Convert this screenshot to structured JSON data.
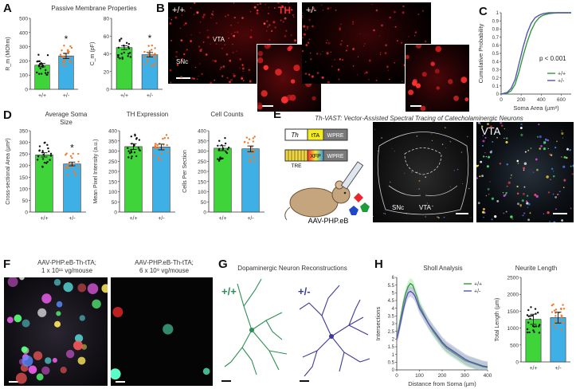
{
  "panels": {
    "A": {
      "label": "A",
      "title": "Passive Membrane Properties",
      "rm_ylabel": "R_m (MOhm)",
      "cm_ylabel": "C_m (pF)",
      "star": "*"
    },
    "B": {
      "label": "B",
      "geno_wt": "+/+",
      "geno_het": "+/-",
      "marker": "TH",
      "region_vta": "VTA",
      "region_snc": "SNc"
    },
    "C": {
      "label": "C",
      "pval": "p < 0.001",
      "xlabel": "Soma Area (µm²)",
      "ylabel": "Cumulative Probability",
      "legend_wt": "+/+",
      "legend_het": "+/-"
    },
    "D": {
      "label": "D",
      "soma_title_1": "Average Soma",
      "soma_title_2": "Size",
      "soma_ylabel": "Cross-sectional Area (µm²)",
      "th_title": "TH Expression",
      "th_ylabel": "Mean Pixel Intensity (a.u.)",
      "cc_title": "Cell Counts",
      "cc_ylabel": "Cells Per Section",
      "star": "*"
    },
    "E": {
      "label": "E",
      "title": "Th-VAST: Vector-Assisted Spectral Tracing of Catecholaminergic Neurons",
      "c1_gene": "Th",
      "c1_tta": "tTA",
      "c1_wpre": "WPRE",
      "c2_tre": "TRE",
      "c2_xfp": "XFP",
      "c2_wpre": "WPRE",
      "virus": "AAV-PHP.eB",
      "snc": "SNc",
      "vta": "VTA",
      "inset_title": "VTA"
    },
    "F": {
      "label": "F",
      "left_line1": "AAV-PHP.eB-Th-tTA;",
      "left_line2": "1 x 10¹¹ vg/mouse",
      "right_line1": "AAV-PHP.eB-Th-tTA;",
      "right_line2": "6 x 10⁹ vg/mouse"
    },
    "G": {
      "label": "G",
      "title": "Dopaminergic Neuron Reconstructions",
      "geno_wt": "+/+",
      "geno_het": "+/-"
    },
    "H": {
      "label": "H",
      "sholl_title": "Sholl Analysis",
      "sholl_ylabel": "Intersections",
      "sholl_xlabel": "Distance from Soma (µm)",
      "legend_wt": "+/+",
      "legend_het": "+/-",
      "neurite_title": "Neurite Length",
      "neurite_ylabel": "Total Length (µm)"
    }
  },
  "colors": {
    "wt": "#3fd43a",
    "het": "#3fb0e6",
    "wt_dot": "#111111",
    "het_dot": "#ee7a2a",
    "wt_line": "#2e9a3a",
    "het_line": "#5555aa",
    "neuron_wt": "#2d8f55",
    "neuron_het": "#3d3b9a"
  },
  "chart_data": [
    {
      "id": "A_rm",
      "type": "bar",
      "categories": [
        "+/+",
        "+/-"
      ],
      "values": [
        170,
        235
      ],
      "errors": [
        12,
        18
      ],
      "ylim": [
        0,
        500
      ],
      "yticks": [
        "0",
        "100",
        "200",
        "300",
        "400",
        "500"
      ],
      "ylabel": "R_m (MOhm)",
      "significant": [
        false,
        true
      ]
    },
    {
      "id": "A_cm",
      "type": "bar",
      "categories": [
        "+/+",
        "+/-"
      ],
      "values": [
        47,
        39
      ],
      "errors": [
        2.2,
        2.5
      ],
      "ylim": [
        0,
        80
      ],
      "yticks": [
        "0",
        "20",
        "40",
        "60",
        "80"
      ],
      "ylabel": "C_m (pF)",
      "significant": [
        false,
        true
      ]
    },
    {
      "id": "C_cdf",
      "type": "line",
      "xlim": [
        0,
        700
      ],
      "xticks": [
        "0",
        "200",
        "400",
        "600"
      ],
      "ylim": [
        0,
        1
      ],
      "yticks": [
        "0",
        "0.1",
        "0.2",
        "0.3",
        "0.4",
        "0.5",
        "0.6",
        "0.7",
        "0.8",
        "0.9",
        "1"
      ],
      "xlabel": "Soma Area (µm²)",
      "ylabel": "Cumulative Probability",
      "series": [
        {
          "name": "+/+",
          "x": [
            0,
            60,
            100,
            140,
            180,
            220,
            260,
            300,
            340,
            380,
            420,
            480,
            560,
            700
          ],
          "y": [
            0,
            0.01,
            0.04,
            0.12,
            0.28,
            0.47,
            0.64,
            0.78,
            0.88,
            0.94,
            0.97,
            0.99,
            1,
            1
          ]
        },
        {
          "name": "+/-",
          "x": [
            0,
            60,
            100,
            140,
            180,
            220,
            260,
            300,
            340,
            380,
            420,
            480,
            560,
            700
          ],
          "y": [
            0,
            0.02,
            0.07,
            0.18,
            0.38,
            0.58,
            0.75,
            0.87,
            0.94,
            0.97,
            0.99,
            1,
            1,
            1
          ]
        }
      ]
    },
    {
      "id": "D_soma",
      "type": "bar",
      "categories": [
        "+/+",
        "+/-"
      ],
      "values": [
        246,
        207
      ],
      "errors": [
        9,
        8
      ],
      "ylim": [
        0,
        350
      ],
      "yticks": [
        "0",
        "50",
        "100",
        "150",
        "200",
        "250",
        "300",
        "350"
      ],
      "ylabel": "Cross-sectional Area (µm²)",
      "significant": [
        false,
        true
      ]
    },
    {
      "id": "D_th",
      "type": "bar",
      "categories": [
        "+/+",
        "+/-"
      ],
      "values": [
        322,
        320
      ],
      "errors": [
        14,
        14
      ],
      "ylim": [
        0,
        400
      ],
      "yticks": [
        "0",
        "50",
        "100",
        "150",
        "200",
        "250",
        "300",
        "350",
        "400"
      ],
      "ylabel": "Mean Pixel Intensity (a.u.)",
      "significant": [
        false,
        false
      ]
    },
    {
      "id": "D_cells",
      "type": "bar",
      "categories": [
        "+/+",
        "+/-"
      ],
      "values": [
        314,
        311
      ],
      "errors": [
        12,
        14
      ],
      "ylim": [
        0,
        400
      ],
      "yticks": [
        "0",
        "50",
        "100",
        "150",
        "200",
        "250",
        "300",
        "350",
        "400"
      ],
      "ylabel": "Cells Per Section",
      "significant": [
        false,
        false
      ]
    },
    {
      "id": "H_sholl",
      "type": "line",
      "xlim": [
        0,
        400
      ],
      "xticks": [
        "0",
        "100",
        "200",
        "300",
        "400"
      ],
      "ylim": [
        0,
        6
      ],
      "yticks": [
        "0",
        "0.5",
        "1",
        "1.5",
        "2",
        "2.5",
        "3",
        "3.5",
        "4",
        "4.5",
        "5",
        "5.5",
        "6"
      ],
      "xlabel": "Distance from Soma (µm)",
      "ylabel": "Intersections",
      "series": [
        {
          "name": "+/+",
          "x": [
            0,
            10,
            20,
            30,
            40,
            50,
            60,
            70,
            80,
            90,
            100,
            120,
            140,
            160,
            180,
            200,
            220,
            240,
            260,
            280,
            300,
            320,
            340,
            360,
            380,
            400
          ],
          "y": [
            2.0,
            2.8,
            3.6,
            4.4,
            5.0,
            5.4,
            5.6,
            5.5,
            5.1,
            4.7,
            4.2,
            3.6,
            3.0,
            2.5,
            2.1,
            1.7,
            1.4,
            1.2,
            1.0,
            0.8,
            0.6,
            0.5,
            0.4,
            0.3,
            0.2,
            0.15
          ]
        },
        {
          "name": "+/-",
          "x": [
            0,
            10,
            20,
            30,
            40,
            50,
            60,
            70,
            80,
            90,
            100,
            120,
            140,
            160,
            180,
            200,
            220,
            240,
            260,
            280,
            300,
            320,
            340,
            360,
            380,
            400
          ],
          "y": [
            2.0,
            2.6,
            3.3,
            4.0,
            4.6,
            5.0,
            5.1,
            5.0,
            4.8,
            4.4,
            4.0,
            3.5,
            3.0,
            2.6,
            2.2,
            1.8,
            1.5,
            1.3,
            1.1,
            0.9,
            0.7,
            0.55,
            0.45,
            0.35,
            0.25,
            0.2
          ]
        }
      ]
    },
    {
      "id": "H_neurite",
      "type": "bar",
      "categories": [
        "+/+",
        "+/-"
      ],
      "values": [
        1260,
        1310
      ],
      "errors": [
        150,
        160
      ],
      "ylim": [
        0,
        2500
      ],
      "yticks": [
        "0",
        "500",
        "1000",
        "1500",
        "2000",
        "2500"
      ],
      "ylabel": "Total Length (µm)",
      "significant": [
        false,
        false
      ]
    }
  ]
}
